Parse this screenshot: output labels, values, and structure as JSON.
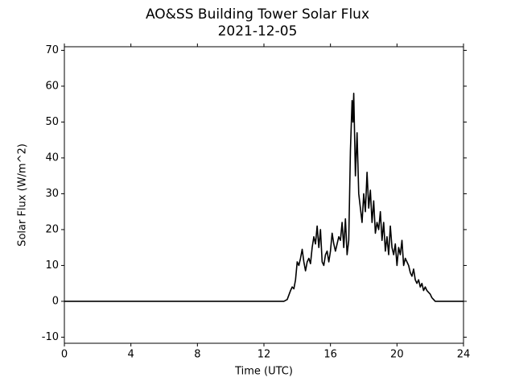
{
  "chart_data": {
    "type": "line",
    "title": "AO&SS Building Tower Solar Flux",
    "subtitle": "2021-12-05",
    "x_label": "Time (UTC)",
    "y_label": "Solar Flux (W/m^2)",
    "color": "#000000",
    "x": [
      0,
      13.2,
      13.4,
      13.6,
      13.7,
      13.8,
      13.9,
      14.0,
      14.1,
      14.2,
      14.3,
      14.4,
      14.5,
      14.6,
      14.7,
      14.8,
      14.9,
      15.0,
      15.1,
      15.2,
      15.3,
      15.4,
      15.5,
      15.6,
      15.7,
      15.8,
      15.9,
      16.0,
      16.1,
      16.2,
      16.3,
      16.4,
      16.5,
      16.6,
      16.7,
      16.8,
      16.9,
      17.0,
      17.1,
      17.2,
      17.3,
      17.35,
      17.4,
      17.5,
      17.6,
      17.7,
      17.8,
      17.9,
      18.0,
      18.1,
      18.2,
      18.3,
      18.4,
      18.5,
      18.6,
      18.7,
      18.8,
      18.9,
      19.0,
      19.1,
      19.2,
      19.3,
      19.4,
      19.5,
      19.6,
      19.7,
      19.8,
      19.9,
      20.0,
      20.1,
      20.2,
      20.3,
      20.4,
      20.5,
      20.6,
      20.7,
      20.8,
      20.9,
      21.0,
      21.1,
      21.2,
      21.3,
      21.4,
      21.5,
      21.6,
      21.7,
      21.8,
      21.9,
      22.0,
      22.1,
      22.2,
      22.3,
      24
    ],
    "values": [
      0,
      0,
      0.5,
      3,
      4,
      3.5,
      6,
      11,
      10,
      12,
      14.5,
      11,
      8.5,
      11,
      12,
      10.5,
      15,
      18,
      16,
      21,
      15,
      20,
      11,
      10,
      13,
      14,
      11,
      14,
      19,
      16,
      14,
      16,
      18,
      17,
      22,
      15,
      23,
      13,
      17,
      42,
      56,
      50,
      58,
      35,
      47,
      30,
      26,
      22,
      30,
      25,
      36,
      26,
      31,
      22,
      28,
      19,
      22,
      20,
      25,
      17,
      22,
      14,
      18,
      13,
      21,
      15,
      13,
      16,
      10,
      15,
      13,
      17,
      10,
      12,
      11,
      10,
      8,
      7,
      9,
      6,
      5,
      6,
      4,
      5,
      3,
      4,
      3,
      2.5,
      2,
      1,
      0.5,
      0,
      0
    ],
    "xlim": [
      0,
      24
    ],
    "xticks": [
      0,
      4,
      8,
      12,
      16,
      20,
      24
    ],
    "ylim": [
      -11.7,
      71
    ],
    "yticks": [
      -10,
      0,
      10,
      20,
      30,
      40,
      50,
      60,
      70
    ]
  }
}
